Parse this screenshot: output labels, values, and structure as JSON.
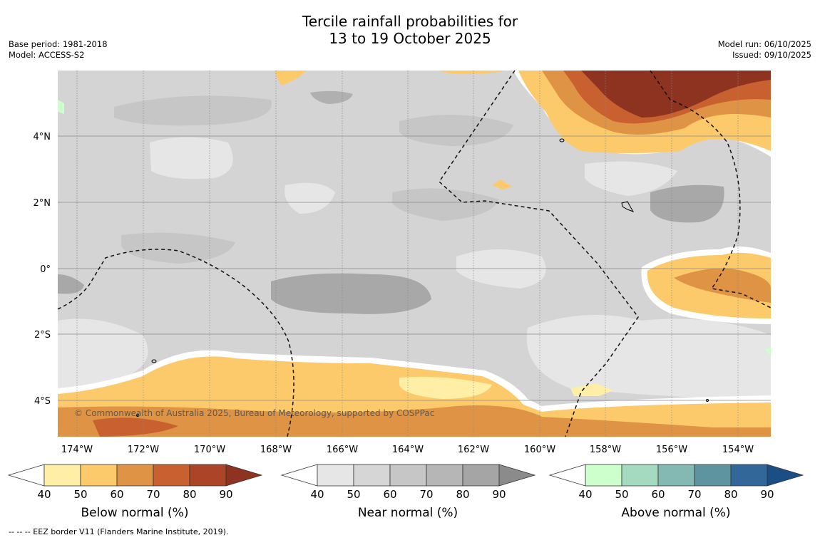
{
  "title_line1": "Tercile rainfall probabilities for",
  "title_line2": "13 to 19 October 2025",
  "base_period": "Base period: 1981-2018",
  "model": "Model: ACCESS-S2",
  "model_run": "Model run: 06/10/2025",
  "issued": "Issued: 09/10/2025",
  "credit": "© Commonwealth of Australia 2025, Bureau of Meteorology, supported by COSPPac",
  "footer": "--  --  -- EEZ border V11 (Flanders Marine Institute, 2019).",
  "map": {
    "lon_labels": [
      "174°W",
      "172°W",
      "170°W",
      "168°W",
      "166°W",
      "164°W",
      "162°W",
      "160°W",
      "158°W",
      "156°W",
      "154°W"
    ],
    "lat_labels": [
      "4°N",
      "2°N",
      "0°",
      "2°S",
      "4°S"
    ]
  },
  "colorbars": [
    {
      "label": "Below normal (%)",
      "ticks": [
        "40",
        "50",
        "60",
        "70",
        "80",
        "90"
      ],
      "colors": [
        "#ffeea6",
        "#fdca6b",
        "#df9344",
        "#c9602f",
        "#ac4427",
        "#8e3320"
      ]
    },
    {
      "label": "Near normal (%)",
      "ticks": [
        "40",
        "50",
        "60",
        "70",
        "80",
        "90"
      ],
      "colors": [
        "#e6e6e6",
        "#d6d6d6",
        "#c6c6c6",
        "#b6b6b6",
        "#a5a5a5",
        "#8b8b8b"
      ]
    },
    {
      "label": "Above normal (%)",
      "ticks": [
        "40",
        "50",
        "60",
        "70",
        "80",
        "90"
      ],
      "colors": [
        "#ccffcc",
        "#a4dac0",
        "#84b8b3",
        "#5e949f",
        "#316799",
        "#1b4e85"
      ]
    }
  ]
}
